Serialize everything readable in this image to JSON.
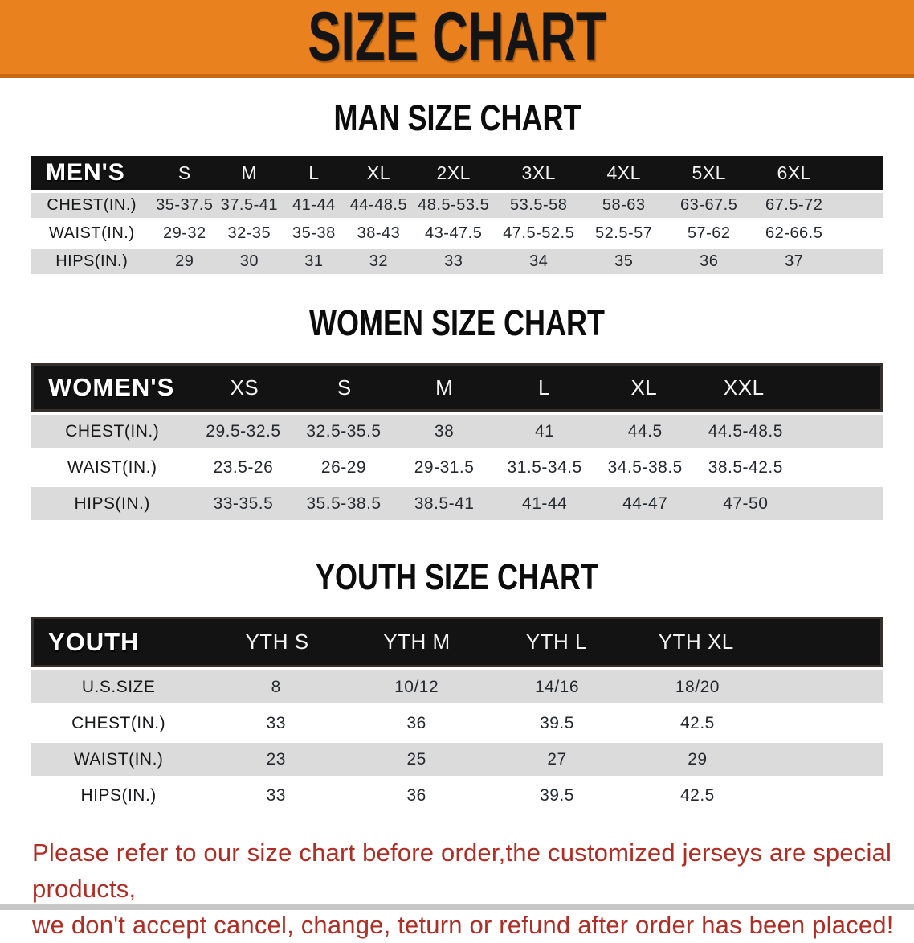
{
  "banner": {
    "title": "SIZE CHART"
  },
  "colors": {
    "banner_orange": "#E8811E",
    "banner_edge": "#C9690F",
    "header_black": "#131313",
    "row_gray": "#DBDBDB",
    "disclaimer_red": "#AE2E25"
  },
  "chart_data": [
    {
      "type": "table",
      "title": "MAN SIZE CHART",
      "header": [
        "MEN'S",
        "S",
        "M",
        "L",
        "XL",
        "2XL",
        "3XL",
        "4XL",
        "5XL",
        "6XL"
      ],
      "rows": [
        [
          "CHEST(IN.)",
          "35-37.5",
          "37.5-41",
          "41-44",
          "44-48.5",
          "48.5-53.5",
          "53.5-58",
          "58-63",
          "63-67.5",
          "67.5-72"
        ],
        [
          "WAIST(IN.)",
          "29-32",
          "32-35",
          "35-38",
          "38-43",
          "43-47.5",
          "47.5-52.5",
          "52.5-57",
          "57-62",
          "62-66.5"
        ],
        [
          "HIPS(IN.)",
          "29",
          "30",
          "31",
          "32",
          "33",
          "34",
          "35",
          "36",
          "37"
        ]
      ]
    },
    {
      "type": "table",
      "title": "WOMEN SIZE CHART",
      "header": [
        "WOMEN'S",
        "XS",
        "S",
        "M",
        "L",
        "XL",
        "XXL"
      ],
      "rows": [
        [
          "CHEST(IN.)",
          "29.5-32.5",
          "32.5-35.5",
          "38",
          "41",
          "44.5",
          "44.5-48.5"
        ],
        [
          "WAIST(IN.)",
          "23.5-26",
          "26-29",
          "29-31.5",
          "31.5-34.5",
          "34.5-38.5",
          "38.5-42.5"
        ],
        [
          "HIPS(IN.)",
          "33-35.5",
          "35.5-38.5",
          "38.5-41",
          "41-44",
          "44-47",
          "47-50"
        ]
      ]
    },
    {
      "type": "table",
      "title": "YOUTH SIZE CHART",
      "header": [
        "YOUTH",
        "YTH S",
        "YTH M",
        "YTH L",
        "YTH XL"
      ],
      "rows": [
        [
          "U.S.SIZE",
          "8",
          "10/12",
          "14/16",
          "18/20"
        ],
        [
          "CHEST(IN.)",
          "33",
          "36",
          "39.5",
          "42.5"
        ],
        [
          "WAIST(IN.)",
          "23",
          "25",
          "27",
          "29"
        ],
        [
          "HIPS(IN.)",
          "33",
          "36",
          "39.5",
          "42.5"
        ]
      ]
    }
  ],
  "disclaimer": {
    "line1": "Please refer to our size chart before order,the customized jerseys are special products,",
    "line2": "we don't accept cancel, change, teturn or refund after order has been placed!"
  }
}
